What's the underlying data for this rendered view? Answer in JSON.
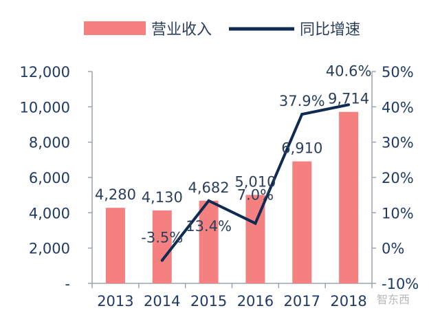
{
  "chart_data": {
    "type": "bar",
    "categories": [
      "2013",
      "2014",
      "2015",
      "2016",
      "2017",
      "2018"
    ],
    "series": [
      {
        "name": "营业收入",
        "type": "bar",
        "axis": "left",
        "values": [
          4280,
          4130,
          4682,
          5010,
          6910,
          9714
        ],
        "labels": [
          "4,280",
          "4,130",
          "4,682",
          "5,010",
          "6,910",
          "9,714"
        ]
      },
      {
        "name": "同比增速",
        "type": "line",
        "axis": "right",
        "values": [
          null,
          -3.5,
          13.4,
          7.0,
          37.9,
          40.6
        ],
        "labels": [
          "",
          "-3.5%",
          "13.4%",
          "7.0%",
          "37.9%",
          "40.6%"
        ]
      }
    ],
    "ylim_left": [
      0,
      12000
    ],
    "ylim_right": [
      -10,
      50
    ],
    "left_ticks": [
      "-",
      "2,000",
      "4,000",
      "6,000",
      "8,000",
      "10,000",
      "12,000"
    ],
    "right_ticks": [
      "-10%",
      "0%",
      "10%",
      "20%",
      "30%",
      "40%",
      "50%"
    ],
    "legend_position": "top",
    "grid": false,
    "colors": {
      "bar": "#f4817f",
      "line": "#0f2b52",
      "axis": "#9aa4b1",
      "text": "#1f3a64"
    }
  },
  "watermark": "智东西"
}
